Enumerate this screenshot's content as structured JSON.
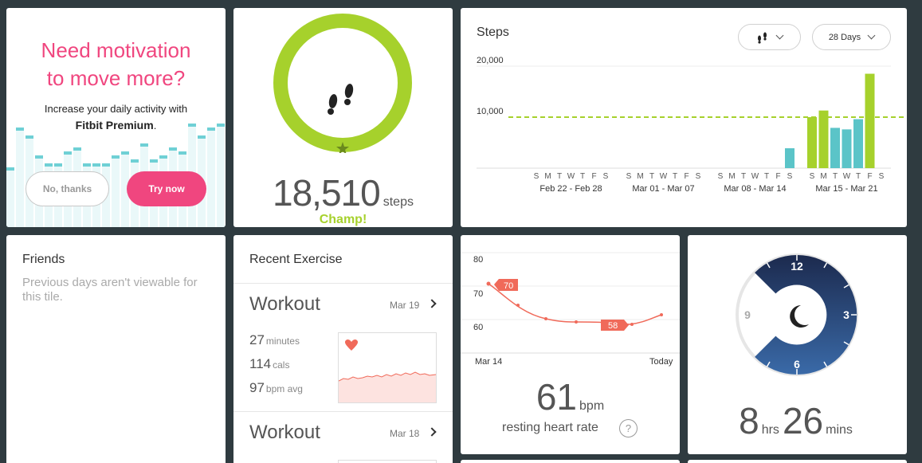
{
  "premium": {
    "title_line1": "Need motivation",
    "title_line2": "to move more?",
    "text_line1": "Increase your daily activity with",
    "text_bold": "Fitbit Premium",
    "text_period": ".",
    "no_button": "No, thanks",
    "try_button": "Try now",
    "accent_color": "#f0467f"
  },
  "steps_tile": {
    "count": "18,510",
    "unit": "steps",
    "badge": "Champ!",
    "ring_color": "#a6d12c",
    "icon": "footprints-icon"
  },
  "steps_chart": {
    "title": "Steps",
    "dropdown_icon": "footprints-icon",
    "range_label": "28 Days"
  },
  "chart_data": {
    "type": "bar",
    "title": "Steps",
    "y_ticks": [
      "20,000",
      "10,000"
    ],
    "ylim": [
      0,
      20000
    ],
    "goal": 10000,
    "day_letters": [
      "S",
      "M",
      "T",
      "W",
      "T",
      "F",
      "S"
    ],
    "week_labels": [
      "Feb 22 - Feb 28",
      "Mar 01 - Mar 07",
      "Mar 08 - Mar 14",
      "Mar 15 - Mar 21"
    ],
    "values": [
      0,
      0,
      0,
      0,
      0,
      0,
      0,
      0,
      0,
      0,
      0,
      0,
      0,
      0,
      0,
      0,
      0,
      0,
      0,
      0,
      3900,
      10000,
      11300,
      7900,
      7600,
      9600,
      18510,
      0
    ],
    "colors": {
      "goal_met": "#a6d12c",
      "below_goal": "#5bc4c8"
    }
  },
  "friends": {
    "title": "Friends",
    "message": "Previous days aren't viewable for this tile."
  },
  "exercise": {
    "title": "Recent Exercise",
    "items": [
      {
        "name": "Workout",
        "date": "Mar 19",
        "minutes": "27",
        "minutes_unit": "minutes",
        "cals": "114",
        "cals_unit": "cals",
        "bpm": "97",
        "bpm_unit": "bpm avg"
      },
      {
        "name": "Workout",
        "date": "Mar 18"
      }
    ]
  },
  "heart": {
    "y_ticks": [
      "80",
      "70",
      "60"
    ],
    "x_start": "Mar 14",
    "x_end": "Today",
    "marker_high": "70",
    "marker_low": "58",
    "value": "61",
    "unit": "bpm",
    "label": "resting heart rate",
    "help": "?",
    "line_color": "#f06a5a"
  },
  "sleep": {
    "hours": "8",
    "hours_unit": "hrs",
    "mins": "26",
    "mins_unit": "mins",
    "clock_12": "12",
    "clock_3": "3",
    "clock_6": "6",
    "clock_9": "9",
    "icon": "moon-icon"
  }
}
